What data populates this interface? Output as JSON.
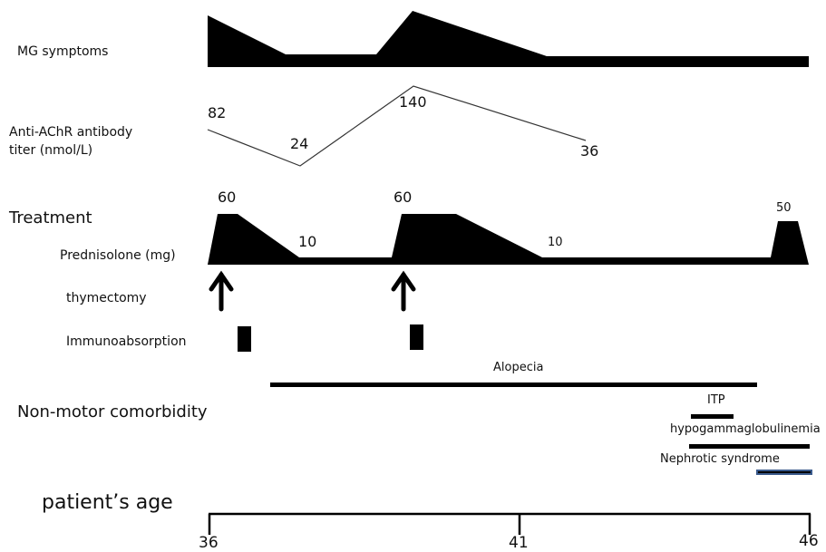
{
  "rows": {
    "mg_symptoms": "MG symptoms",
    "antibody_line1": "Anti-AChR antibody",
    "antibody_line2": "titer (nmol/L)",
    "treatment": "Treatment",
    "prednisolone": "Prednisolone (mg)",
    "thymectomy": "thymectomy",
    "immunoabsorption": "Immunoabsorption",
    "comorbidity": "Non-motor comorbidity",
    "age": "patient’s age"
  },
  "antibody_titers": [
    "82",
    "24",
    "140",
    "36"
  ],
  "prednisolone_doses": [
    "60",
    "10",
    "60",
    "10",
    "50"
  ],
  "comorbidities": {
    "alopecia": "Alopecia",
    "itp": "ITP",
    "hypogammaglobulinemia": "hypogammaglobulinemia",
    "nephrotic": "Nephrotic syndrome"
  },
  "age_ticks": [
    "36",
    "41",
    "46"
  ],
  "colors": {
    "ink": "#000000",
    "nephrotic_bar": "#3a5a8c"
  }
}
